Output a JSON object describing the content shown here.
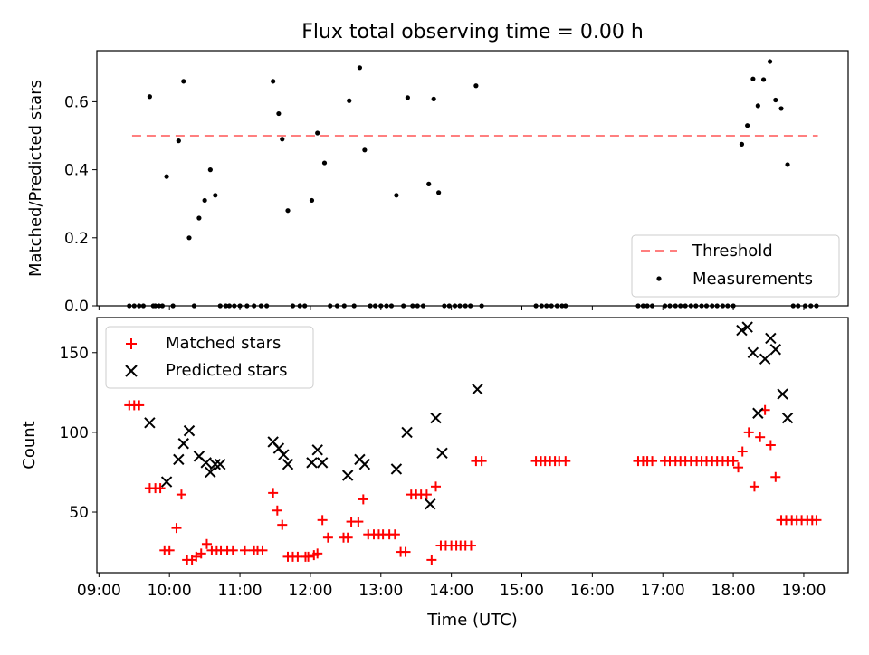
{
  "figure": {
    "title": "Flux total observing time = 0.00 h",
    "xlabel": "Time (UTC)",
    "xticks": [
      "09:00",
      "10:00",
      "11:00",
      "12:00",
      "13:00",
      "14:00",
      "15:00",
      "16:00",
      "17:00",
      "18:00",
      "19:00"
    ]
  },
  "chart_data": [
    {
      "type": "scatter",
      "ylabel": "Matched/Predicted stars",
      "ylim": [
        0,
        0.75
      ],
      "yticks": [
        "0.0",
        "0.2",
        "0.4",
        "0.6"
      ],
      "xlim_hours": [
        8.97,
        19.63
      ],
      "legend_position": "lower-right",
      "threshold": {
        "name": "Threshold",
        "value": 0.5,
        "x_range_hours": [
          9.47,
          19.2
        ],
        "color": "#ff7f7f",
        "style": "dashed"
      },
      "series": [
        {
          "name": "Measurements",
          "color": "#000000",
          "x_hours": [
            9.43,
            9.5,
            9.57,
            9.63,
            9.72,
            9.77,
            9.8,
            9.85,
            9.9,
            9.96,
            10.05,
            10.13,
            10.2,
            10.28,
            10.35,
            10.42,
            10.5,
            10.58,
            10.65,
            10.72,
            10.8,
            10.85,
            10.92,
            11.0,
            11.1,
            11.2,
            11.3,
            11.38,
            11.47,
            11.55,
            11.6,
            11.68,
            11.75,
            11.85,
            11.92,
            12.02,
            12.1,
            12.2,
            12.28,
            12.38,
            12.48,
            12.55,
            12.62,
            12.7,
            12.77,
            12.85,
            12.92,
            13.0,
            13.08,
            13.15,
            13.22,
            13.32,
            13.38,
            13.45,
            13.52,
            13.6,
            13.68,
            13.75,
            13.82,
            13.9,
            13.97,
            14.05,
            14.12,
            14.2,
            14.27,
            14.35,
            14.43,
            15.2,
            15.28,
            15.35,
            15.42,
            15.5,
            15.57,
            15.62,
            16.65,
            16.72,
            16.78,
            16.85,
            17.03,
            17.1,
            17.18,
            17.25,
            17.32,
            17.4,
            17.47,
            17.55,
            17.62,
            17.7,
            17.77,
            17.85,
            17.92,
            18.0,
            18.12,
            18.2,
            18.28,
            18.35,
            18.43,
            18.52,
            18.6,
            18.68,
            18.77,
            18.85,
            18.92,
            19.02,
            19.1,
            19.18
          ],
          "y_values": [
            0.0,
            0.0,
            0.0,
            0.0,
            0.615,
            0.0,
            0.0,
            0.0,
            0.0,
            0.38,
            0.0,
            0.485,
            0.66,
            0.2,
            0.0,
            0.258,
            0.31,
            0.4,
            0.325,
            0.0,
            0.0,
            0.0,
            0.0,
            0.0,
            0.0,
            0.0,
            0.0,
            0.0,
            0.66,
            0.565,
            0.49,
            0.28,
            0.0,
            0.0,
            0.0,
            0.31,
            0.508,
            0.42,
            0.0,
            0.0,
            0.0,
            0.603,
            0.0,
            0.7,
            0.458,
            0.0,
            0.0,
            0.0,
            0.0,
            0.0,
            0.325,
            0.0,
            0.612,
            0.0,
            0.0,
            0.0,
            0.358,
            0.608,
            0.333,
            0.0,
            0.0,
            0.0,
            0.0,
            0.0,
            0.0,
            0.647,
            0.0,
            0.0,
            0.0,
            0.0,
            0.0,
            0.0,
            0.0,
            0.0,
            0.0,
            0.0,
            0.0,
            0.0,
            0.0,
            0.0,
            0.0,
            0.0,
            0.0,
            0.0,
            0.0,
            0.0,
            0.0,
            0.0,
            0.0,
            0.0,
            0.0,
            0.0,
            0.475,
            0.53,
            0.667,
            0.588,
            0.665,
            0.718,
            0.605,
            0.58,
            0.415,
            0.0,
            0.0,
            0.0,
            0.0,
            0.0
          ]
        }
      ]
    },
    {
      "type": "scatter",
      "ylabel": "Count",
      "ylim": [
        12,
        172
      ],
      "yticks": [
        "50",
        "100",
        "150"
      ],
      "xlim_hours": [
        8.97,
        19.63
      ],
      "legend_position": "upper-left",
      "series": [
        {
          "name": "Matched stars",
          "color": "#ff0000",
          "marker": "plus",
          "x_hours": [
            9.43,
            9.5,
            9.57,
            9.72,
            9.8,
            9.87,
            9.93,
            10.0,
            10.1,
            10.17,
            10.25,
            10.32,
            10.38,
            10.45,
            10.53,
            10.6,
            10.67,
            10.73,
            10.82,
            10.9,
            11.07,
            11.2,
            11.25,
            11.32,
            11.47,
            11.53,
            11.6,
            11.68,
            11.75,
            11.82,
            11.93,
            11.97,
            12.05,
            12.1,
            12.17,
            12.25,
            12.47,
            12.53,
            12.58,
            12.68,
            12.75,
            12.82,
            12.9,
            12.97,
            13.03,
            13.12,
            13.2,
            13.28,
            13.35,
            13.43,
            13.5,
            13.57,
            13.65,
            13.72,
            13.78,
            13.85,
            13.92,
            14.0,
            14.07,
            14.13,
            14.2,
            14.28,
            14.35,
            14.43,
            15.2,
            15.27,
            15.33,
            15.4,
            15.47,
            15.53,
            15.62,
            16.65,
            16.72,
            16.78,
            16.85,
            17.03,
            17.1,
            17.18,
            17.25,
            17.32,
            17.4,
            17.48,
            17.55,
            17.62,
            17.7,
            17.77,
            17.85,
            17.92,
            18.0,
            18.07,
            18.13,
            18.22,
            18.3,
            18.38,
            18.45,
            18.53,
            18.6,
            18.68,
            18.75,
            18.83,
            18.9,
            18.97,
            19.05,
            19.12,
            19.18
          ],
          "y_values": [
            117,
            117,
            117,
            65,
            65,
            65,
            26,
            26,
            40,
            61,
            20,
            20,
            22,
            24,
            30,
            26,
            26,
            26,
            26,
            26,
            26,
            26,
            26,
            26,
            62,
            51,
            42,
            22,
            22,
            22,
            22,
            22,
            23,
            24,
            45,
            34,
            34,
            34,
            44,
            44,
            58,
            36,
            36,
            36,
            36,
            36,
            36,
            25,
            25,
            61,
            61,
            61,
            61,
            20,
            66,
            29,
            29,
            29,
            29,
            29,
            29,
            29,
            82,
            82,
            82,
            82,
            82,
            82,
            82,
            82,
            82,
            82,
            82,
            82,
            82,
            82,
            82,
            82,
            82,
            82,
            82,
            82,
            82,
            82,
            82,
            82,
            82,
            82,
            82,
            78,
            88,
            100,
            66,
            97,
            114,
            92,
            72,
            45,
            45,
            45,
            45,
            45,
            45,
            45,
            45
          ],
          "_note": "first 9.63 point merged above"
        },
        {
          "name": "Predicted stars",
          "color": "#000000",
          "marker": "x",
          "x_hours": [
            9.72,
            9.96,
            10.13,
            10.2,
            10.28,
            10.42,
            10.52,
            10.58,
            10.65,
            10.72,
            11.47,
            11.55,
            11.62,
            11.68,
            12.02,
            12.1,
            12.17,
            12.53,
            12.7,
            12.77,
            13.22,
            13.37,
            13.7,
            13.78,
            13.87,
            14.37,
            18.12,
            18.2,
            18.28,
            18.35,
            18.45,
            18.53,
            18.6,
            18.7,
            18.77
          ],
          "y_values": [
            106,
            69,
            83,
            93,
            101,
            85,
            81,
            75,
            80,
            80,
            94,
            90,
            86,
            80,
            81,
            89,
            81,
            73,
            83,
            80,
            77,
            100,
            55,
            109,
            87,
            127,
            164,
            166,
            150,
            112,
            146,
            159,
            152,
            124,
            109
          ]
        }
      ]
    }
  ]
}
